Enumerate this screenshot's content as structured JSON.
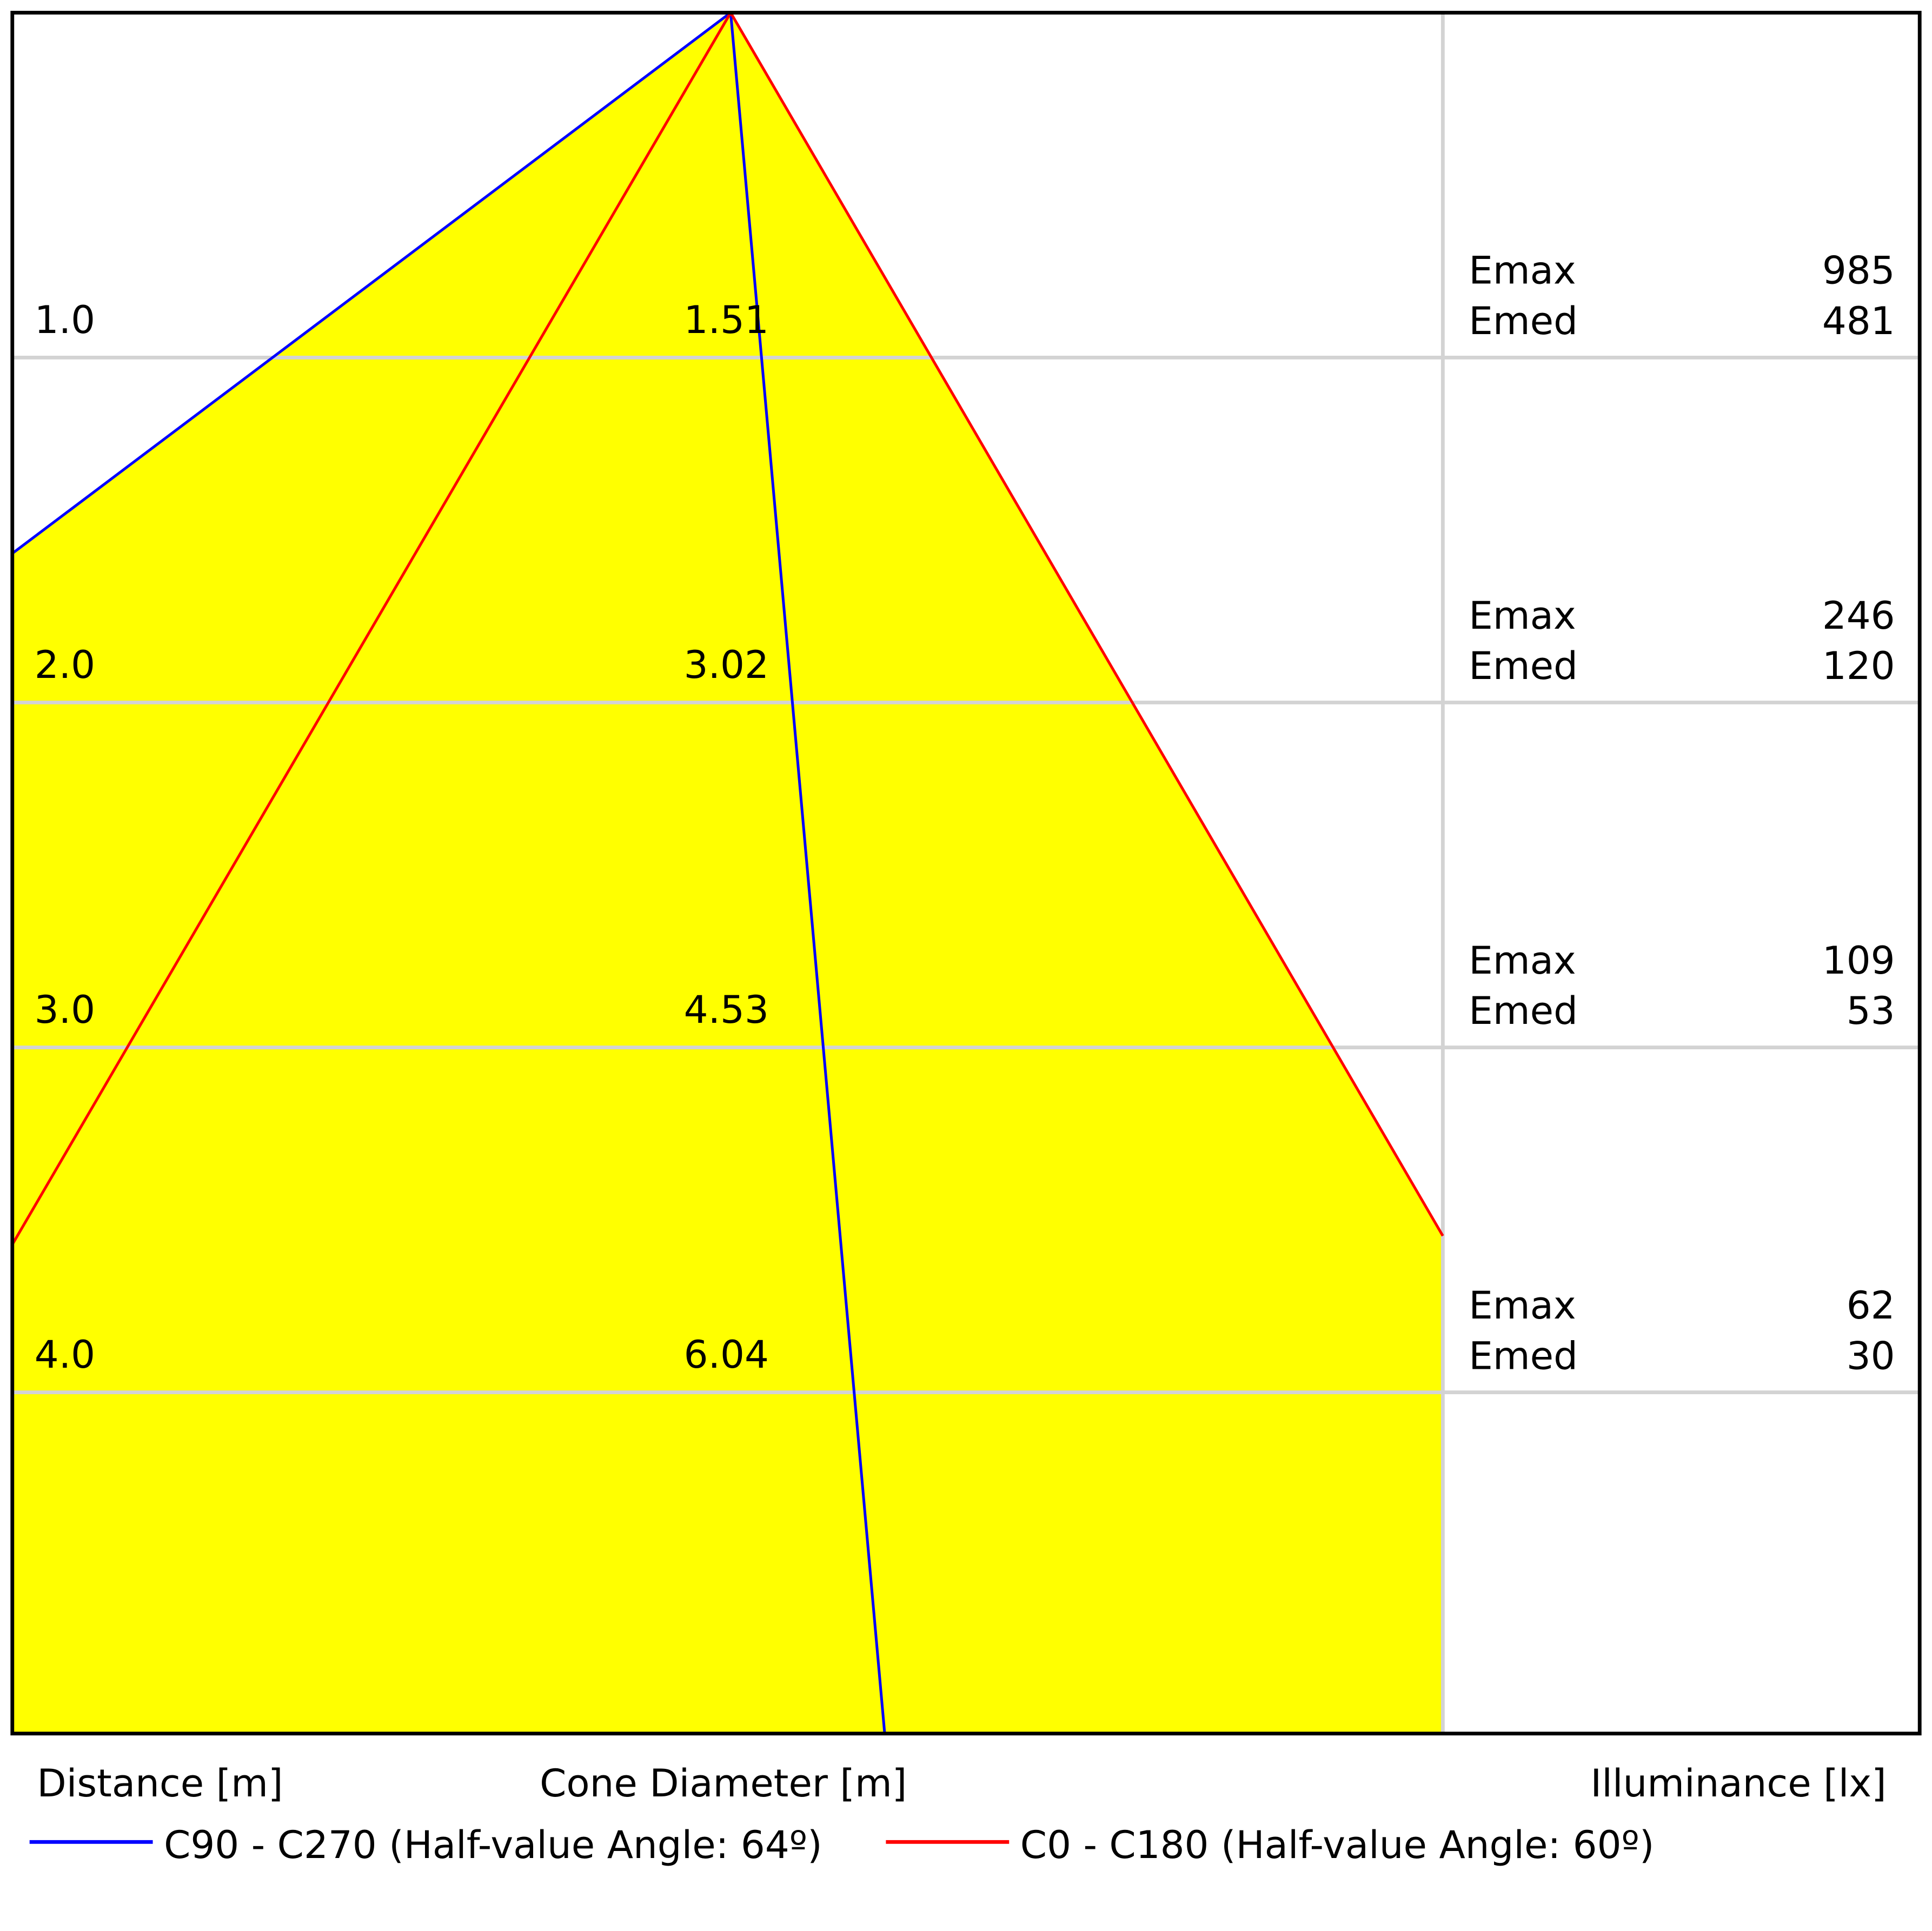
{
  "chart_data": {
    "type": "cone-diagram",
    "xlabel_distance": "Distance [m]",
    "xlabel_diameter": "Cone Diameter [m]",
    "xlabel_illuminance": "Illuminance [lx]",
    "rows": [
      {
        "distance": "1.0",
        "diameter": "1.51",
        "emax_label": "Emax",
        "emax": "985",
        "emed_label": "Emed",
        "emed": "481"
      },
      {
        "distance": "2.0",
        "diameter": "3.02",
        "emax_label": "Emax",
        "emax": "246",
        "emed_label": "Emed",
        "emed": "120"
      },
      {
        "distance": "3.0",
        "diameter": "4.53",
        "emax_label": "Emax",
        "emax": "109",
        "emed_label": "Emed",
        "emed": "53"
      },
      {
        "distance": "4.0",
        "diameter": "6.04",
        "emax_label": "Emax",
        "emax": "62",
        "emed_label": "Emed",
        "emed": "30"
      }
    ],
    "series": [
      {
        "name": "C90 - C270 (Half-value Angle: 64º)",
        "half_angle_deg": 64,
        "color": "#0000ff"
      },
      {
        "name": "C0 - C180 (Half-value Angle: 60º)",
        "half_angle_deg": 60,
        "color": "#ff0000"
      }
    ],
    "fill_color": "#ffff00",
    "grid_color": "#d3d3d3"
  }
}
